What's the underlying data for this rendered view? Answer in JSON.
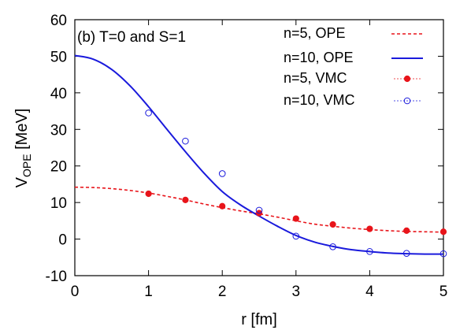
{
  "chart_data": {
    "type": "line",
    "annotation": "(b) T=0 and S=1",
    "xlabel": "r [fm]",
    "ylabel_main": "V",
    "ylabel_sub": "OPE",
    "ylabel_unit": " [MeV]",
    "xlim": [
      0,
      5
    ],
    "ylim": [
      -10,
      60
    ],
    "xticks": [
      0,
      1,
      2,
      3,
      4,
      5
    ],
    "yticks": [
      -10,
      0,
      10,
      20,
      30,
      40,
      50,
      60
    ],
    "grid": false,
    "legend_position": "top-right",
    "series": [
      {
        "name": "n=5,  OPE",
        "kind": "line",
        "style": "dashed",
        "color": "#e8141a",
        "x": [
          0,
          0.25,
          0.5,
          0.75,
          1.0,
          1.25,
          1.5,
          1.75,
          2.0,
          2.25,
          2.5,
          2.75,
          3.0,
          3.25,
          3.5,
          3.75,
          4.0,
          4.25,
          4.5,
          4.75,
          5.0
        ],
        "y": [
          14.2,
          14.1,
          13.8,
          13.3,
          12.6,
          11.7,
          10.7,
          9.6,
          8.6,
          7.7,
          6.9,
          6.0,
          5.0,
          4.1,
          3.5,
          3.0,
          2.6,
          2.3,
          2.1,
          2.0,
          1.9
        ]
      },
      {
        "name": "n=10, OPE",
        "kind": "line",
        "style": "solid",
        "color": "#1a1adc",
        "x": [
          0,
          0.25,
          0.5,
          0.75,
          1.0,
          1.25,
          1.5,
          1.75,
          2.0,
          2.25,
          2.5,
          2.75,
          3.0,
          3.25,
          3.5,
          3.75,
          4.0,
          4.25,
          4.5,
          4.75,
          5.0
        ],
        "y": [
          50.2,
          49.2,
          46.4,
          41.9,
          36.2,
          30.0,
          23.9,
          18.1,
          13.0,
          9.3,
          6.3,
          3.5,
          1.0,
          -0.8,
          -2.0,
          -2.9,
          -3.4,
          -3.8,
          -4.0,
          -4.1,
          -4.1
        ]
      },
      {
        "name": "n=5,  VMC",
        "kind": "points",
        "marker": "filled-circle",
        "color": "#e8141a",
        "x": [
          1.0,
          1.5,
          2.0,
          2.5,
          3.0,
          3.5,
          4.0,
          4.5,
          5.0
        ],
        "y": [
          12.4,
          10.7,
          9.0,
          7.1,
          5.6,
          4.0,
          2.8,
          2.3,
          2.0
        ]
      },
      {
        "name": "n=10, VMC",
        "kind": "points",
        "marker": "open-circle",
        "color": "#1a1adc",
        "x": [
          1.0,
          1.5,
          2.0,
          2.5,
          3.0,
          3.5,
          4.0,
          4.5,
          5.0
        ],
        "y": [
          34.5,
          26.8,
          17.9,
          7.9,
          0.8,
          -2.1,
          -3.4,
          -3.9,
          -4.0
        ]
      }
    ]
  }
}
